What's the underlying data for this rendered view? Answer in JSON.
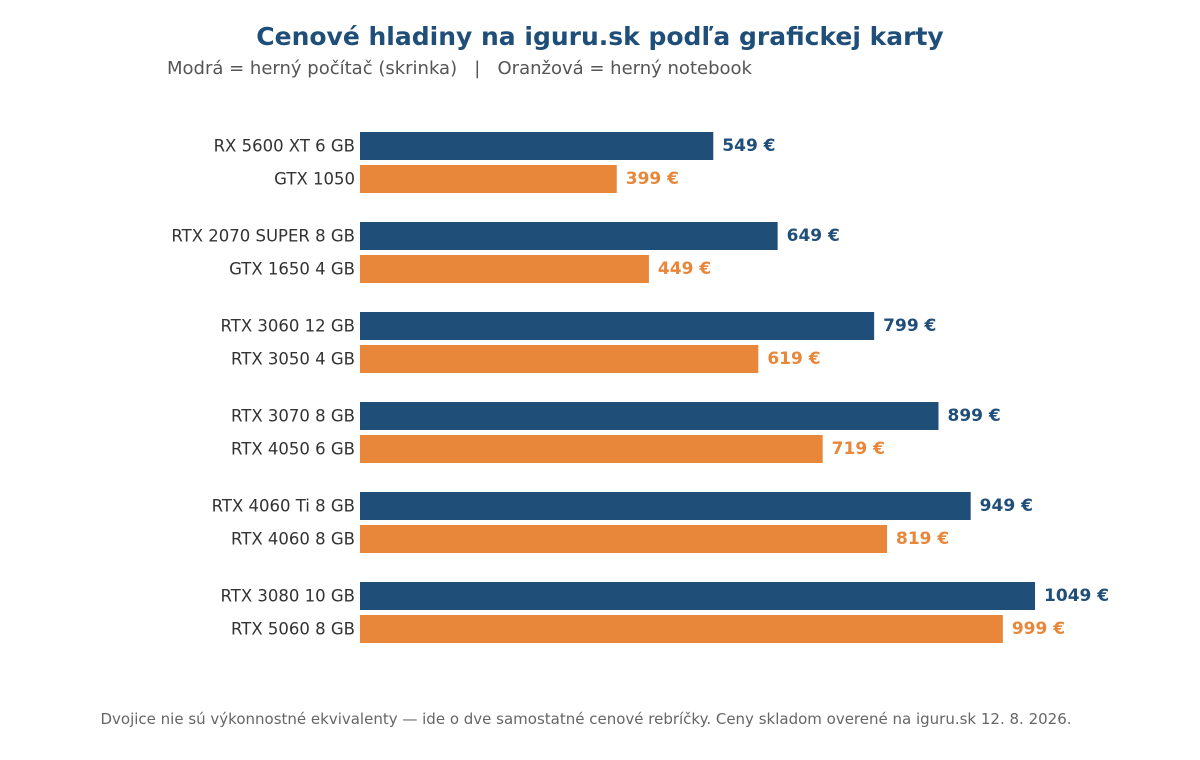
{
  "chart_data": {
    "type": "bar",
    "orientation": "horizontal",
    "title": "Cenové hladiny na iguru.sk podľa grafickej karty",
    "subtitle": "Modrá = herný počítač (skrinka)   |   Oranžová = herný notebook",
    "footnote": "Dvojice nie sú výkonnostné ekvivalenty — ide o dve samostatné cenové rebríčky. Ceny skladom overené na iguru.sk 12. 8. 2026.",
    "currency_suffix": " €",
    "xlim": [
      0,
      1100
    ],
    "grid": false,
    "legend": "none",
    "series": [
      {
        "key": "desktop",
        "color": "#1f4e79",
        "labels": [
          "RX 5600 XT 6 GB",
          "RTX 2070 SUPER 8 GB",
          "RTX 3060 12 GB",
          "RTX 3070 8 GB",
          "RTX 4060 Ti 8 GB",
          "RTX 3080 10 GB"
        ],
        "values": [
          549,
          649,
          799,
          899,
          949,
          1049
        ]
      },
      {
        "key": "notebook",
        "color": "#e8873a",
        "labels": [
          "GTX 1050",
          "GTX 1650 4 GB",
          "RTX 3050 4 GB",
          "RTX 4050 6 GB",
          "RTX 4060 8 GB",
          "RTX 5060 8 GB"
        ],
        "values": [
          399,
          449,
          619,
          719,
          819,
          999
        ]
      }
    ]
  }
}
